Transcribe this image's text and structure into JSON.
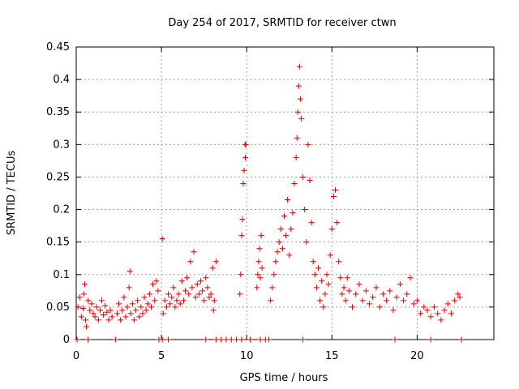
{
  "chart_data": {
    "type": "scatter",
    "title": "Day 254 of 2017, SRMTID for receiver ctwn",
    "xlabel": "GPS time / hours",
    "ylabel": "SRMTID / TECUs",
    "xlim": [
      0,
      24.5
    ],
    "ylim": [
      0,
      0.45
    ],
    "xticks": [
      0,
      5,
      10,
      15,
      20
    ],
    "xtick_labels": [
      "0",
      "5",
      "10",
      "15",
      "20"
    ],
    "yticks": [
      0,
      0.05,
      0.1,
      0.15,
      0.2,
      0.25,
      0.3,
      0.35,
      0.4,
      0.45
    ],
    "ytick_labels": [
      "0",
      "0.05",
      "0.1",
      "0.15",
      "0.2",
      "0.25",
      "0.3",
      "0.35",
      "0.4",
      "0.45"
    ],
    "grid": true,
    "marker": "+",
    "marker_color": "#dd0000",
    "series": [
      {
        "name": "SRMTID",
        "points": [
          [
            0.1,
            0.05
          ],
          [
            0.2,
            0.065
          ],
          [
            0.3,
            0.035
          ],
          [
            0.4,
            0.048
          ],
          [
            0.45,
            0.07
          ],
          [
            0.5,
            0.085
          ],
          [
            0.55,
            0.03
          ],
          [
            0.6,
            0.02
          ],
          [
            0.7,
            0.06
          ],
          [
            0.8,
            0.045
          ],
          [
            0.9,
            0.055
          ],
          [
            1.0,
            0.04
          ],
          [
            1.1,
            0.035
          ],
          [
            1.2,
            0.05
          ],
          [
            1.3,
            0.03
          ],
          [
            1.4,
            0.045
          ],
          [
            1.5,
            0.06
          ],
          [
            1.6,
            0.038
          ],
          [
            1.7,
            0.052
          ],
          [
            1.8,
            0.042
          ],
          [
            1.9,
            0.03
          ],
          [
            2.0,
            0.045
          ],
          [
            2.1,
            0.035
          ],
          [
            2.4,
            0.04
          ],
          [
            2.5,
            0.055
          ],
          [
            2.6,
            0.03
          ],
          [
            2.7,
            0.045
          ],
          [
            2.8,
            0.065
          ],
          [
            2.9,
            0.035
          ],
          [
            3.0,
            0.05
          ],
          [
            3.1,
            0.08
          ],
          [
            3.15,
            0.105
          ],
          [
            3.2,
            0.04
          ],
          [
            3.3,
            0.055
          ],
          [
            3.4,
            0.03
          ],
          [
            3.5,
            0.045
          ],
          [
            3.6,
            0.06
          ],
          [
            3.7,
            0.035
          ],
          [
            3.8,
            0.05
          ],
          [
            3.9,
            0.04
          ],
          [
            4.0,
            0.065
          ],
          [
            4.1,
            0.045
          ],
          [
            4.2,
            0.055
          ],
          [
            4.3,
            0.07
          ],
          [
            4.4,
            0.05
          ],
          [
            4.5,
            0.085
          ],
          [
            4.6,
            0.06
          ],
          [
            4.7,
            0.09
          ],
          [
            4.8,
            0.075
          ],
          [
            5.05,
            0.155
          ],
          [
            5.1,
            0.04
          ],
          [
            5.2,
            0.06
          ],
          [
            5.3,
            0.05
          ],
          [
            5.4,
            0.07
          ],
          [
            5.5,
            0.055
          ],
          [
            5.6,
            0.065
          ],
          [
            5.7,
            0.08
          ],
          [
            5.8,
            0.05
          ],
          [
            5.9,
            0.06
          ],
          [
            6.0,
            0.07
          ],
          [
            6.1,
            0.055
          ],
          [
            6.2,
            0.09
          ],
          [
            6.3,
            0.06
          ],
          [
            6.4,
            0.075
          ],
          [
            6.5,
            0.095
          ],
          [
            6.6,
            0.07
          ],
          [
            6.7,
            0.12
          ],
          [
            6.8,
            0.08
          ],
          [
            6.9,
            0.135
          ],
          [
            7.0,
            0.065
          ],
          [
            7.1,
            0.085
          ],
          [
            7.2,
            0.07
          ],
          [
            7.3,
            0.09
          ],
          [
            7.4,
            0.075
          ],
          [
            7.5,
            0.06
          ],
          [
            7.6,
            0.095
          ],
          [
            7.7,
            0.08
          ],
          [
            7.8,
            0.065
          ],
          [
            7.9,
            0.07
          ],
          [
            8.0,
            0.11
          ],
          [
            8.05,
            0.045
          ],
          [
            8.1,
            0.06
          ],
          [
            8.2,
            0.12
          ],
          [
            9.6,
            0.07
          ],
          [
            9.65,
            0.1
          ],
          [
            9.7,
            0.16
          ],
          [
            9.75,
            0.185
          ],
          [
            9.8,
            0.24
          ],
          [
            9.85,
            0.26
          ],
          [
            9.9,
            0.3
          ],
          [
            9.92,
            0.28
          ],
          [
            9.95,
            0.3
          ],
          [
            10.6,
            0.08
          ],
          [
            10.65,
            0.1
          ],
          [
            10.7,
            0.12
          ],
          [
            10.75,
            0.14
          ],
          [
            10.8,
            0.095
          ],
          [
            10.85,
            0.16
          ],
          [
            10.9,
            0.11
          ],
          [
            11.4,
            0.06
          ],
          [
            11.5,
            0.08
          ],
          [
            11.6,
            0.1
          ],
          [
            11.7,
            0.12
          ],
          [
            11.8,
            0.135
          ],
          [
            11.9,
            0.15
          ],
          [
            12.0,
            0.17
          ],
          [
            12.1,
            0.14
          ],
          [
            12.2,
            0.19
          ],
          [
            12.3,
            0.16
          ],
          [
            12.4,
            0.215
          ],
          [
            12.5,
            0.13
          ],
          [
            12.6,
            0.17
          ],
          [
            12.7,
            0.195
          ],
          [
            12.8,
            0.24
          ],
          [
            12.9,
            0.28
          ],
          [
            12.95,
            0.31
          ],
          [
            13.0,
            0.35
          ],
          [
            13.05,
            0.39
          ],
          [
            13.1,
            0.42
          ],
          [
            13.15,
            0.37
          ],
          [
            13.2,
            0.34
          ],
          [
            13.3,
            0.25
          ],
          [
            13.4,
            0.2
          ],
          [
            13.5,
            0.15
          ],
          [
            13.6,
            0.3
          ],
          [
            13.7,
            0.245
          ],
          [
            13.8,
            0.18
          ],
          [
            13.9,
            0.12
          ],
          [
            14.0,
            0.1
          ],
          [
            14.1,
            0.08
          ],
          [
            14.2,
            0.11
          ],
          [
            14.3,
            0.06
          ],
          [
            14.4,
            0.09
          ],
          [
            14.5,
            0.05
          ],
          [
            14.6,
            0.07
          ],
          [
            14.7,
            0.1
          ],
          [
            14.8,
            0.085
          ],
          [
            14.9,
            0.13
          ],
          [
            15.0,
            0.17
          ],
          [
            15.1,
            0.22
          ],
          [
            15.2,
            0.23
          ],
          [
            15.3,
            0.18
          ],
          [
            15.4,
            0.12
          ],
          [
            15.5,
            0.095
          ],
          [
            15.6,
            0.07
          ],
          [
            15.7,
            0.08
          ],
          [
            15.8,
            0.06
          ],
          [
            15.9,
            0.095
          ],
          [
            16.0,
            0.075
          ],
          [
            16.2,
            0.05
          ],
          [
            16.4,
            0.07
          ],
          [
            16.6,
            0.085
          ],
          [
            16.8,
            0.06
          ],
          [
            17.0,
            0.075
          ],
          [
            17.2,
            0.055
          ],
          [
            17.4,
            0.065
          ],
          [
            17.6,
            0.08
          ],
          [
            17.8,
            0.05
          ],
          [
            18.0,
            0.07
          ],
          [
            18.2,
            0.06
          ],
          [
            18.4,
            0.075
          ],
          [
            18.6,
            0.045
          ],
          [
            18.8,
            0.065
          ],
          [
            19.0,
            0.085
          ],
          [
            19.2,
            0.06
          ],
          [
            19.4,
            0.07
          ],
          [
            19.6,
            0.095
          ],
          [
            19.8,
            0.055
          ],
          [
            20.0,
            0.06
          ],
          [
            20.2,
            0.04
          ],
          [
            20.4,
            0.05
          ],
          [
            20.6,
            0.045
          ],
          [
            20.8,
            0.035
          ],
          [
            21.0,
            0.05
          ],
          [
            21.2,
            0.04
          ],
          [
            21.4,
            0.03
          ],
          [
            21.6,
            0.045
          ],
          [
            21.8,
            0.055
          ],
          [
            22.0,
            0.04
          ],
          [
            22.2,
            0.06
          ],
          [
            22.4,
            0.07
          ],
          [
            22.5,
            0.065
          ]
        ],
        "zero_points": [
          0.05,
          0.7,
          2.3,
          4.85,
          5.05,
          5.4,
          7.6,
          8.2,
          8.5,
          8.8,
          9.1,
          9.4,
          9.7,
          10.2,
          10.8,
          11.1,
          11.3,
          13.3,
          18.7,
          20.8,
          22.6
        ]
      }
    ]
  }
}
